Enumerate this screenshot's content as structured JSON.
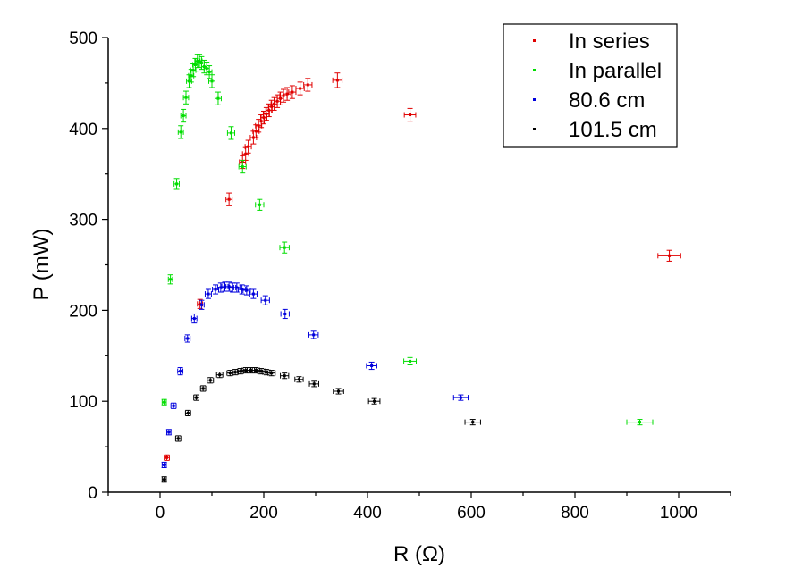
{
  "chart_data": {
    "type": "scatter",
    "xlabel": "R (Ω)",
    "ylabel": "P (mW)",
    "xlim": [
      -100,
      1100
    ],
    "ylim": [
      0,
      500
    ],
    "x_ticks": [
      0,
      200,
      400,
      600,
      800,
      1000
    ],
    "y_ticks": [
      0,
      100,
      200,
      300,
      400,
      500
    ],
    "grid": false,
    "legend_position": "top-right",
    "series": [
      {
        "name": "In series",
        "color": "#e00000",
        "points": [
          {
            "x": 13,
            "y": 38,
            "xerr": 5,
            "yerr": 3
          },
          {
            "x": 77,
            "y": 207,
            "xerr": 5,
            "yerr": 5
          },
          {
            "x": 133,
            "y": 322,
            "xerr": 6,
            "yerr": 7
          },
          {
            "x": 159,
            "y": 363,
            "xerr": 6,
            "yerr": 7
          },
          {
            "x": 165,
            "y": 372,
            "xerr": 6,
            "yerr": 7
          },
          {
            "x": 170,
            "y": 380,
            "xerr": 6,
            "yerr": 7
          },
          {
            "x": 180,
            "y": 390,
            "xerr": 6,
            "yerr": 7
          },
          {
            "x": 185,
            "y": 397,
            "xerr": 6,
            "yerr": 7
          },
          {
            "x": 190,
            "y": 403,
            "xerr": 6,
            "yerr": 7
          },
          {
            "x": 195,
            "y": 408,
            "xerr": 6,
            "yerr": 7
          },
          {
            "x": 200,
            "y": 412,
            "xerr": 6,
            "yerr": 7
          },
          {
            "x": 205,
            "y": 416,
            "xerr": 6,
            "yerr": 7
          },
          {
            "x": 210,
            "y": 420,
            "xerr": 6,
            "yerr": 7
          },
          {
            "x": 215,
            "y": 424,
            "xerr": 6,
            "yerr": 7
          },
          {
            "x": 220,
            "y": 427,
            "xerr": 6,
            "yerr": 7
          },
          {
            "x": 226,
            "y": 430,
            "xerr": 6,
            "yerr": 7
          },
          {
            "x": 232,
            "y": 433,
            "xerr": 6,
            "yerr": 7
          },
          {
            "x": 238,
            "y": 436,
            "xerr": 7,
            "yerr": 7
          },
          {
            "x": 245,
            "y": 438,
            "xerr": 7,
            "yerr": 7
          },
          {
            "x": 255,
            "y": 440,
            "xerr": 7,
            "yerr": 7
          },
          {
            "x": 270,
            "y": 444,
            "xerr": 8,
            "yerr": 7
          },
          {
            "x": 285,
            "y": 448,
            "xerr": 8,
            "yerr": 7
          },
          {
            "x": 342,
            "y": 453,
            "xerr": 9,
            "yerr": 8
          },
          {
            "x": 482,
            "y": 415,
            "xerr": 11,
            "yerr": 7
          },
          {
            "x": 982,
            "y": 260,
            "xerr": 22,
            "yerr": 6
          }
        ]
      },
      {
        "name": "In parallel",
        "color": "#00dd00",
        "points": [
          {
            "x": 8,
            "y": 99,
            "xerr": 4,
            "yerr": 3
          },
          {
            "x": 20,
            "y": 234,
            "xerr": 4,
            "yerr": 5
          },
          {
            "x": 32,
            "y": 339,
            "xerr": 5,
            "yerr": 6
          },
          {
            "x": 40,
            "y": 396,
            "xerr": 5,
            "yerr": 7
          },
          {
            "x": 45,
            "y": 414,
            "xerr": 5,
            "yerr": 7
          },
          {
            "x": 50,
            "y": 434,
            "xerr": 5,
            "yerr": 7
          },
          {
            "x": 56,
            "y": 452,
            "xerr": 5,
            "yerr": 7
          },
          {
            "x": 60,
            "y": 458,
            "xerr": 5,
            "yerr": 7
          },
          {
            "x": 64,
            "y": 464,
            "xerr": 5,
            "yerr": 7
          },
          {
            "x": 68,
            "y": 470,
            "xerr": 5,
            "yerr": 7
          },
          {
            "x": 72,
            "y": 474,
            "xerr": 5,
            "yerr": 7
          },
          {
            "x": 76,
            "y": 474,
            "xerr": 5,
            "yerr": 7
          },
          {
            "x": 80,
            "y": 472,
            "xerr": 5,
            "yerr": 7
          },
          {
            "x": 85,
            "y": 468,
            "xerr": 5,
            "yerr": 7
          },
          {
            "x": 90,
            "y": 466,
            "xerr": 5,
            "yerr": 7
          },
          {
            "x": 95,
            "y": 462,
            "xerr": 5,
            "yerr": 7
          },
          {
            "x": 100,
            "y": 452,
            "xerr": 6,
            "yerr": 7
          },
          {
            "x": 112,
            "y": 433,
            "xerr": 6,
            "yerr": 7
          },
          {
            "x": 137,
            "y": 395,
            "xerr": 7,
            "yerr": 7
          },
          {
            "x": 159,
            "y": 358,
            "xerr": 7,
            "yerr": 7
          },
          {
            "x": 192,
            "y": 316,
            "xerr": 8,
            "yerr": 6
          },
          {
            "x": 240,
            "y": 269,
            "xerr": 9,
            "yerr": 6
          },
          {
            "x": 482,
            "y": 144,
            "xerr": 12,
            "yerr": 4
          },
          {
            "x": 925,
            "y": 77,
            "xerr": 25,
            "yerr": 3
          }
        ]
      },
      {
        "name": "80.6 cm",
        "color": "#0000dd",
        "points": [
          {
            "x": 8,
            "y": 30,
            "xerr": 4,
            "yerr": 3
          },
          {
            "x": 17,
            "y": 66,
            "xerr": 4,
            "yerr": 3
          },
          {
            "x": 26,
            "y": 95,
            "xerr": 5,
            "yerr": 3
          },
          {
            "x": 39,
            "y": 133,
            "xerr": 5,
            "yerr": 4
          },
          {
            "x": 53,
            "y": 169,
            "xerr": 5,
            "yerr": 4
          },
          {
            "x": 66,
            "y": 191,
            "xerr": 5,
            "yerr": 5
          },
          {
            "x": 80,
            "y": 206,
            "xerr": 5,
            "yerr": 5
          },
          {
            "x": 93,
            "y": 218,
            "xerr": 6,
            "yerr": 5
          },
          {
            "x": 107,
            "y": 223,
            "xerr": 6,
            "yerr": 5
          },
          {
            "x": 117,
            "y": 225,
            "xerr": 6,
            "yerr": 5
          },
          {
            "x": 125,
            "y": 226,
            "xerr": 6,
            "yerr": 5
          },
          {
            "x": 133,
            "y": 226,
            "xerr": 6,
            "yerr": 5
          },
          {
            "x": 140,
            "y": 225,
            "xerr": 6,
            "yerr": 5
          },
          {
            "x": 148,
            "y": 225,
            "xerr": 6,
            "yerr": 5
          },
          {
            "x": 158,
            "y": 223,
            "xerr": 7,
            "yerr": 5
          },
          {
            "x": 167,
            "y": 222,
            "xerr": 7,
            "yerr": 5
          },
          {
            "x": 180,
            "y": 218,
            "xerr": 7,
            "yerr": 5
          },
          {
            "x": 203,
            "y": 211,
            "xerr": 8,
            "yerr": 5
          },
          {
            "x": 241,
            "y": 196,
            "xerr": 8,
            "yerr": 5
          },
          {
            "x": 296,
            "y": 173,
            "xerr": 9,
            "yerr": 4
          },
          {
            "x": 408,
            "y": 139,
            "xerr": 10,
            "yerr": 4
          },
          {
            "x": 580,
            "y": 104,
            "xerr": 14,
            "yerr": 3
          }
        ]
      },
      {
        "name": "101.5 cm",
        "color": "#000000",
        "points": [
          {
            "x": 8,
            "y": 14,
            "xerr": 4,
            "yerr": 3
          },
          {
            "x": 35,
            "y": 59,
            "xerr": 5,
            "yerr": 3
          },
          {
            "x": 54,
            "y": 87,
            "xerr": 5,
            "yerr": 3
          },
          {
            "x": 70,
            "y": 104,
            "xerr": 5,
            "yerr": 3
          },
          {
            "x": 83,
            "y": 114,
            "xerr": 5,
            "yerr": 3
          },
          {
            "x": 97,
            "y": 123,
            "xerr": 6,
            "yerr": 3
          },
          {
            "x": 115,
            "y": 129,
            "xerr": 6,
            "yerr": 3
          },
          {
            "x": 135,
            "y": 131,
            "xerr": 6,
            "yerr": 3
          },
          {
            "x": 145,
            "y": 132,
            "xerr": 6,
            "yerr": 3
          },
          {
            "x": 155,
            "y": 133,
            "xerr": 6,
            "yerr": 3
          },
          {
            "x": 165,
            "y": 134,
            "xerr": 7,
            "yerr": 3
          },
          {
            "x": 175,
            "y": 134,
            "xerr": 7,
            "yerr": 3
          },
          {
            "x": 185,
            "y": 134,
            "xerr": 7,
            "yerr": 3
          },
          {
            "x": 195,
            "y": 133,
            "xerr": 7,
            "yerr": 3
          },
          {
            "x": 205,
            "y": 132,
            "xerr": 7,
            "yerr": 3
          },
          {
            "x": 215,
            "y": 131,
            "xerr": 7,
            "yerr": 3
          },
          {
            "x": 240,
            "y": 128,
            "xerr": 8,
            "yerr": 3
          },
          {
            "x": 268,
            "y": 124,
            "xerr": 8,
            "yerr": 3
          },
          {
            "x": 297,
            "y": 119,
            "xerr": 9,
            "yerr": 3
          },
          {
            "x": 344,
            "y": 111,
            "xerr": 10,
            "yerr": 3
          },
          {
            "x": 413,
            "y": 100,
            "xerr": 11,
            "yerr": 3
          },
          {
            "x": 603,
            "y": 77,
            "xerr": 15,
            "yerr": 3
          }
        ]
      }
    ]
  }
}
